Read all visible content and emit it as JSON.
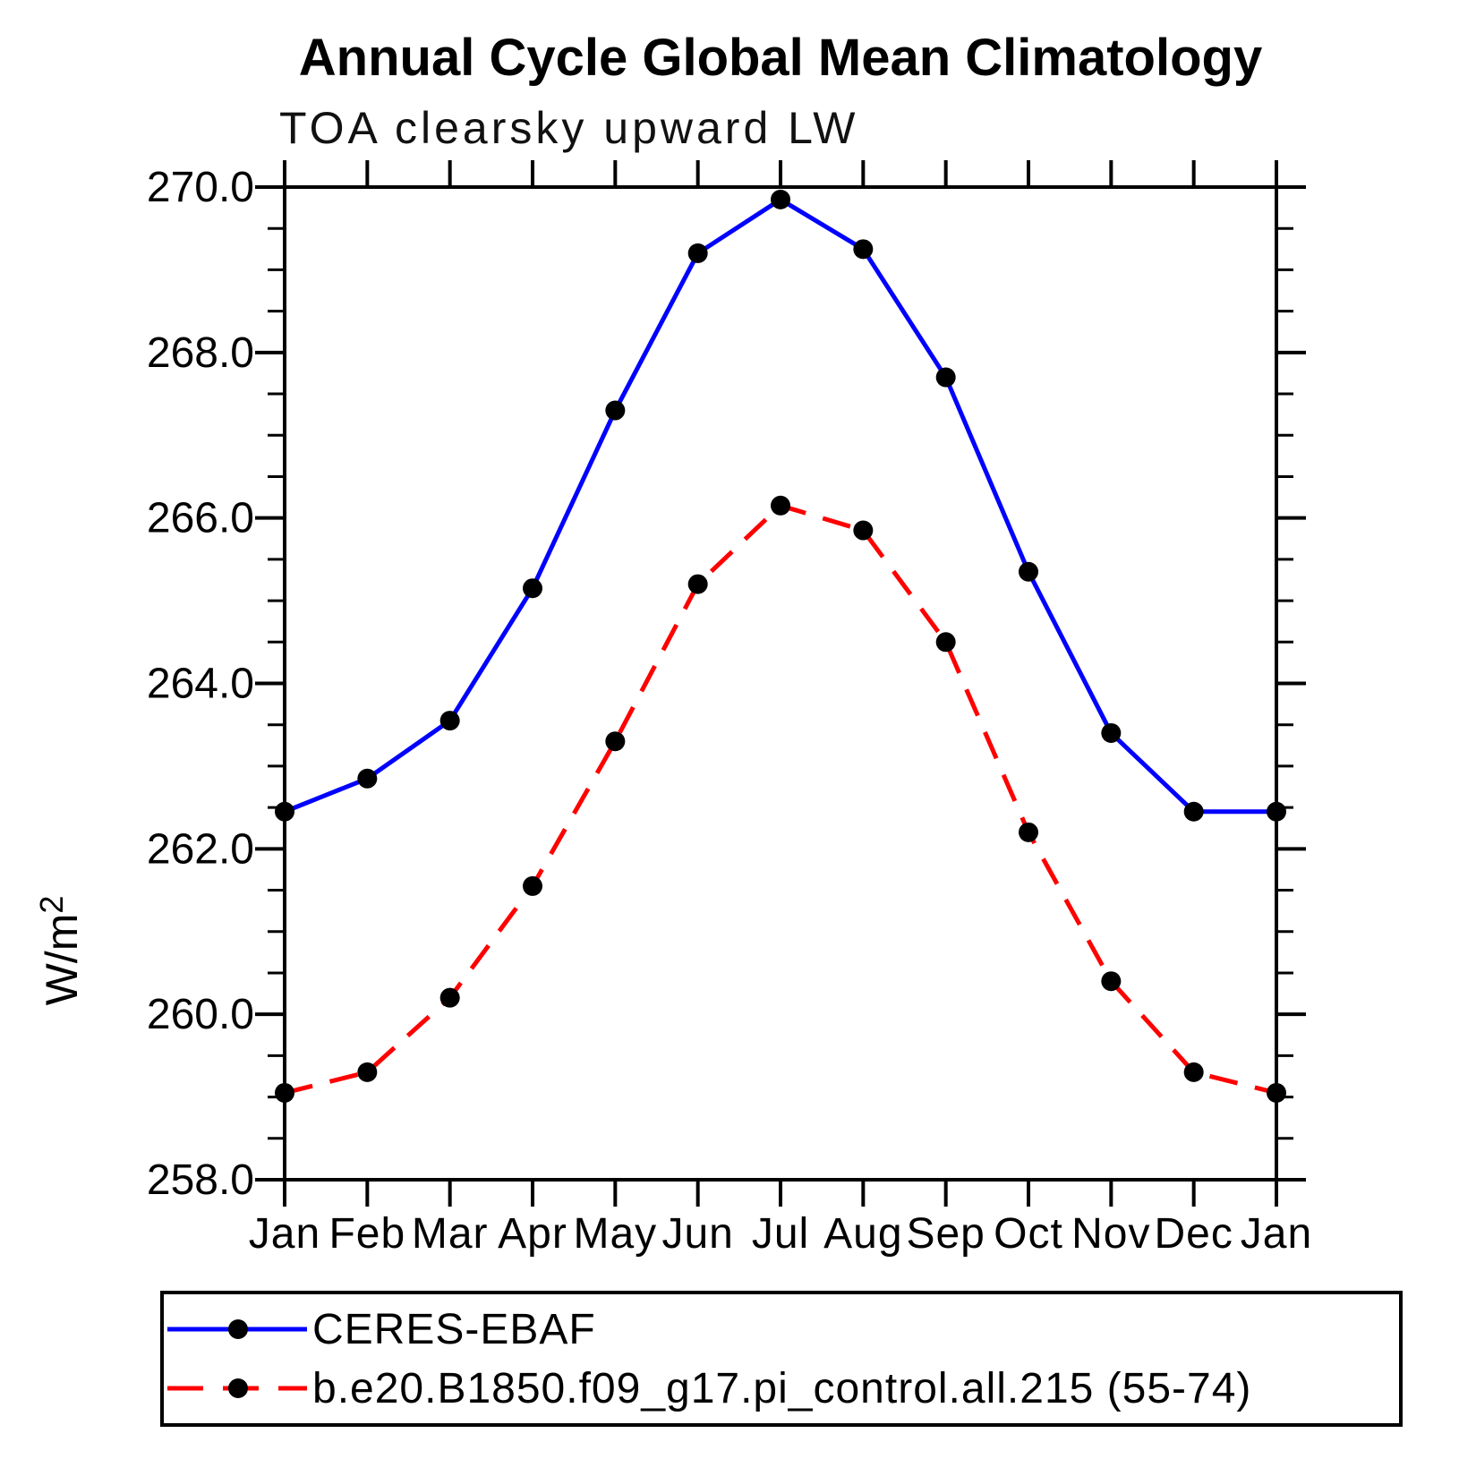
{
  "title": "Annual Cycle Global Mean Climatology",
  "subtitle": "TOA clearsky upward LW",
  "ylabel": {
    "base": "W/m",
    "sup": "2"
  },
  "colors": {
    "axis": "#000000",
    "series1": "#0000ff",
    "series2": "#ff0000",
    "marker": "#000000",
    "background": "#ffffff"
  },
  "chart_data": {
    "type": "line",
    "x_categories": [
      "Jan",
      "Feb",
      "Mar",
      "Apr",
      "May",
      "Jun",
      "Jul",
      "Aug",
      "Sep",
      "Oct",
      "Nov",
      "Dec",
      "Jan"
    ],
    "series": [
      {
        "name": "CERES-EBAF",
        "color": "#0000ff",
        "style": "solid",
        "marker": "circle",
        "marker_color": "#000000",
        "values": [
          262.45,
          262.85,
          263.55,
          265.15,
          267.3,
          269.2,
          269.85,
          269.25,
          267.7,
          265.35,
          263.4,
          262.45,
          262.45
        ]
      },
      {
        "name": "b.e20.B1850.f09_g17.pi_control.all.215 (55-74)",
        "color": "#ff0000",
        "style": "dashed",
        "marker": "circle",
        "marker_color": "#000000",
        "values": [
          259.05,
          259.3,
          260.2,
          261.55,
          263.3,
          265.2,
          266.15,
          265.85,
          264.5,
          262.2,
          260.4,
          259.3,
          259.05
        ]
      }
    ],
    "ylim": [
      258.0,
      270.0
    ],
    "ytick_major": 2.0,
    "ytick_minor": 0.5,
    "ytick_labels": [
      "270.0",
      "268.0",
      "266.0",
      "264.0",
      "262.0",
      "260.0",
      "258.0"
    ],
    "xlabel": "",
    "ylabel": "W/m2",
    "grid": false,
    "legend_position": "bottom-left-box"
  }
}
